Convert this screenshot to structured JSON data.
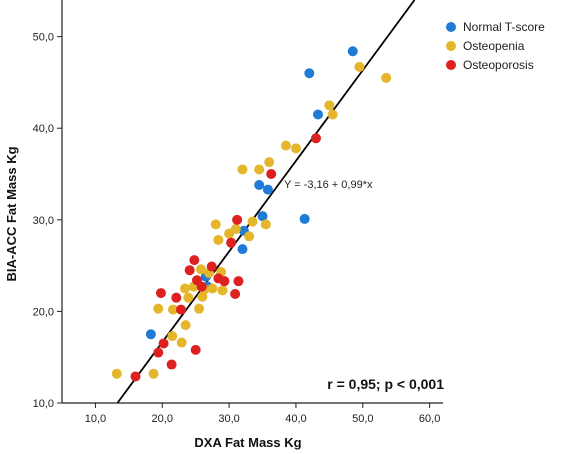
{
  "chart_data": {
    "type": "scatter",
    "xlabel": "DXA Fat Mass Kg",
    "ylabel": "BIA-ACC Fat Mass Kg",
    "xlim": [
      5,
      62
    ],
    "ylim": [
      10,
      54
    ],
    "x_ticks": [
      "10,0",
      "20,0",
      "30,0",
      "40,0",
      "50,0",
      "60,0"
    ],
    "x_tick_values": [
      10,
      20,
      30,
      40,
      50,
      60
    ],
    "y_ticks": [
      "10,0",
      "20,0",
      "30,0",
      "40,0",
      "50,0"
    ],
    "y_tick_values": [
      10,
      20,
      30,
      40,
      50
    ],
    "grid": false,
    "legend_position": "top-right",
    "series": [
      {
        "name": "Normal T-score",
        "color": "#1f7bd6",
        "points": [
          [
            18.3,
            17.5
          ],
          [
            26.5,
            23.8
          ],
          [
            26.8,
            22.7
          ],
          [
            32.0,
            26.8
          ],
          [
            32.2,
            28.8
          ],
          [
            34.5,
            33.8
          ],
          [
            35.0,
            30.4
          ],
          [
            35.8,
            33.3
          ],
          [
            41.3,
            30.1
          ],
          [
            42.0,
            46.0
          ],
          [
            43.3,
            41.5
          ],
          [
            48.5,
            48.4
          ]
        ]
      },
      {
        "name": "Osteopenia",
        "color": "#e5b62c",
        "points": [
          [
            13.2,
            13.2
          ],
          [
            18.7,
            13.2
          ],
          [
            19.4,
            20.3
          ],
          [
            21.5,
            17.3
          ],
          [
            21.6,
            20.2
          ],
          [
            22.9,
            16.6
          ],
          [
            23.4,
            22.5
          ],
          [
            23.5,
            18.5
          ],
          [
            23.9,
            21.5
          ],
          [
            24.7,
            22.7
          ],
          [
            25.5,
            20.3
          ],
          [
            25.8,
            24.6
          ],
          [
            26.0,
            21.6
          ],
          [
            26.3,
            22.4
          ],
          [
            27.0,
            24.2
          ],
          [
            27.5,
            22.5
          ],
          [
            28.0,
            29.5
          ],
          [
            28.4,
            27.8
          ],
          [
            28.8,
            24.3
          ],
          [
            29.0,
            22.3
          ],
          [
            30.0,
            28.5
          ],
          [
            31.0,
            29.0
          ],
          [
            32.0,
            35.5
          ],
          [
            33.0,
            28.2
          ],
          [
            33.5,
            29.8
          ],
          [
            34.5,
            35.5
          ],
          [
            35.5,
            29.5
          ],
          [
            36.0,
            36.3
          ],
          [
            38.5,
            38.1
          ],
          [
            40.0,
            37.8
          ],
          [
            45.0,
            42.5
          ],
          [
            45.5,
            41.5
          ],
          [
            49.5,
            46.7
          ],
          [
            53.5,
            45.5
          ]
        ]
      },
      {
        "name": "Osteoporosis",
        "color": "#dd2020",
        "points": [
          [
            16.0,
            12.9
          ],
          [
            19.4,
            15.5
          ],
          [
            19.8,
            22.0
          ],
          [
            20.2,
            16.5
          ],
          [
            21.4,
            14.2
          ],
          [
            22.1,
            21.5
          ],
          [
            22.8,
            20.2
          ],
          [
            24.1,
            24.5
          ],
          [
            24.8,
            25.6
          ],
          [
            25.0,
            15.8
          ],
          [
            25.2,
            23.4
          ],
          [
            25.9,
            22.7
          ],
          [
            27.4,
            24.9
          ],
          [
            28.4,
            23.6
          ],
          [
            29.3,
            23.3
          ],
          [
            30.3,
            27.5
          ],
          [
            30.9,
            21.9
          ],
          [
            31.2,
            30.0
          ],
          [
            31.4,
            23.3
          ],
          [
            36.3,
            35.0
          ],
          [
            43.0,
            38.9
          ]
        ]
      }
    ],
    "regression": {
      "intercept": -3.16,
      "slope": 0.99
    },
    "annotations": {
      "equation": "Y = -3,16 + 0,99*x",
      "stat": "r = 0,95; p < 0,001"
    }
  }
}
